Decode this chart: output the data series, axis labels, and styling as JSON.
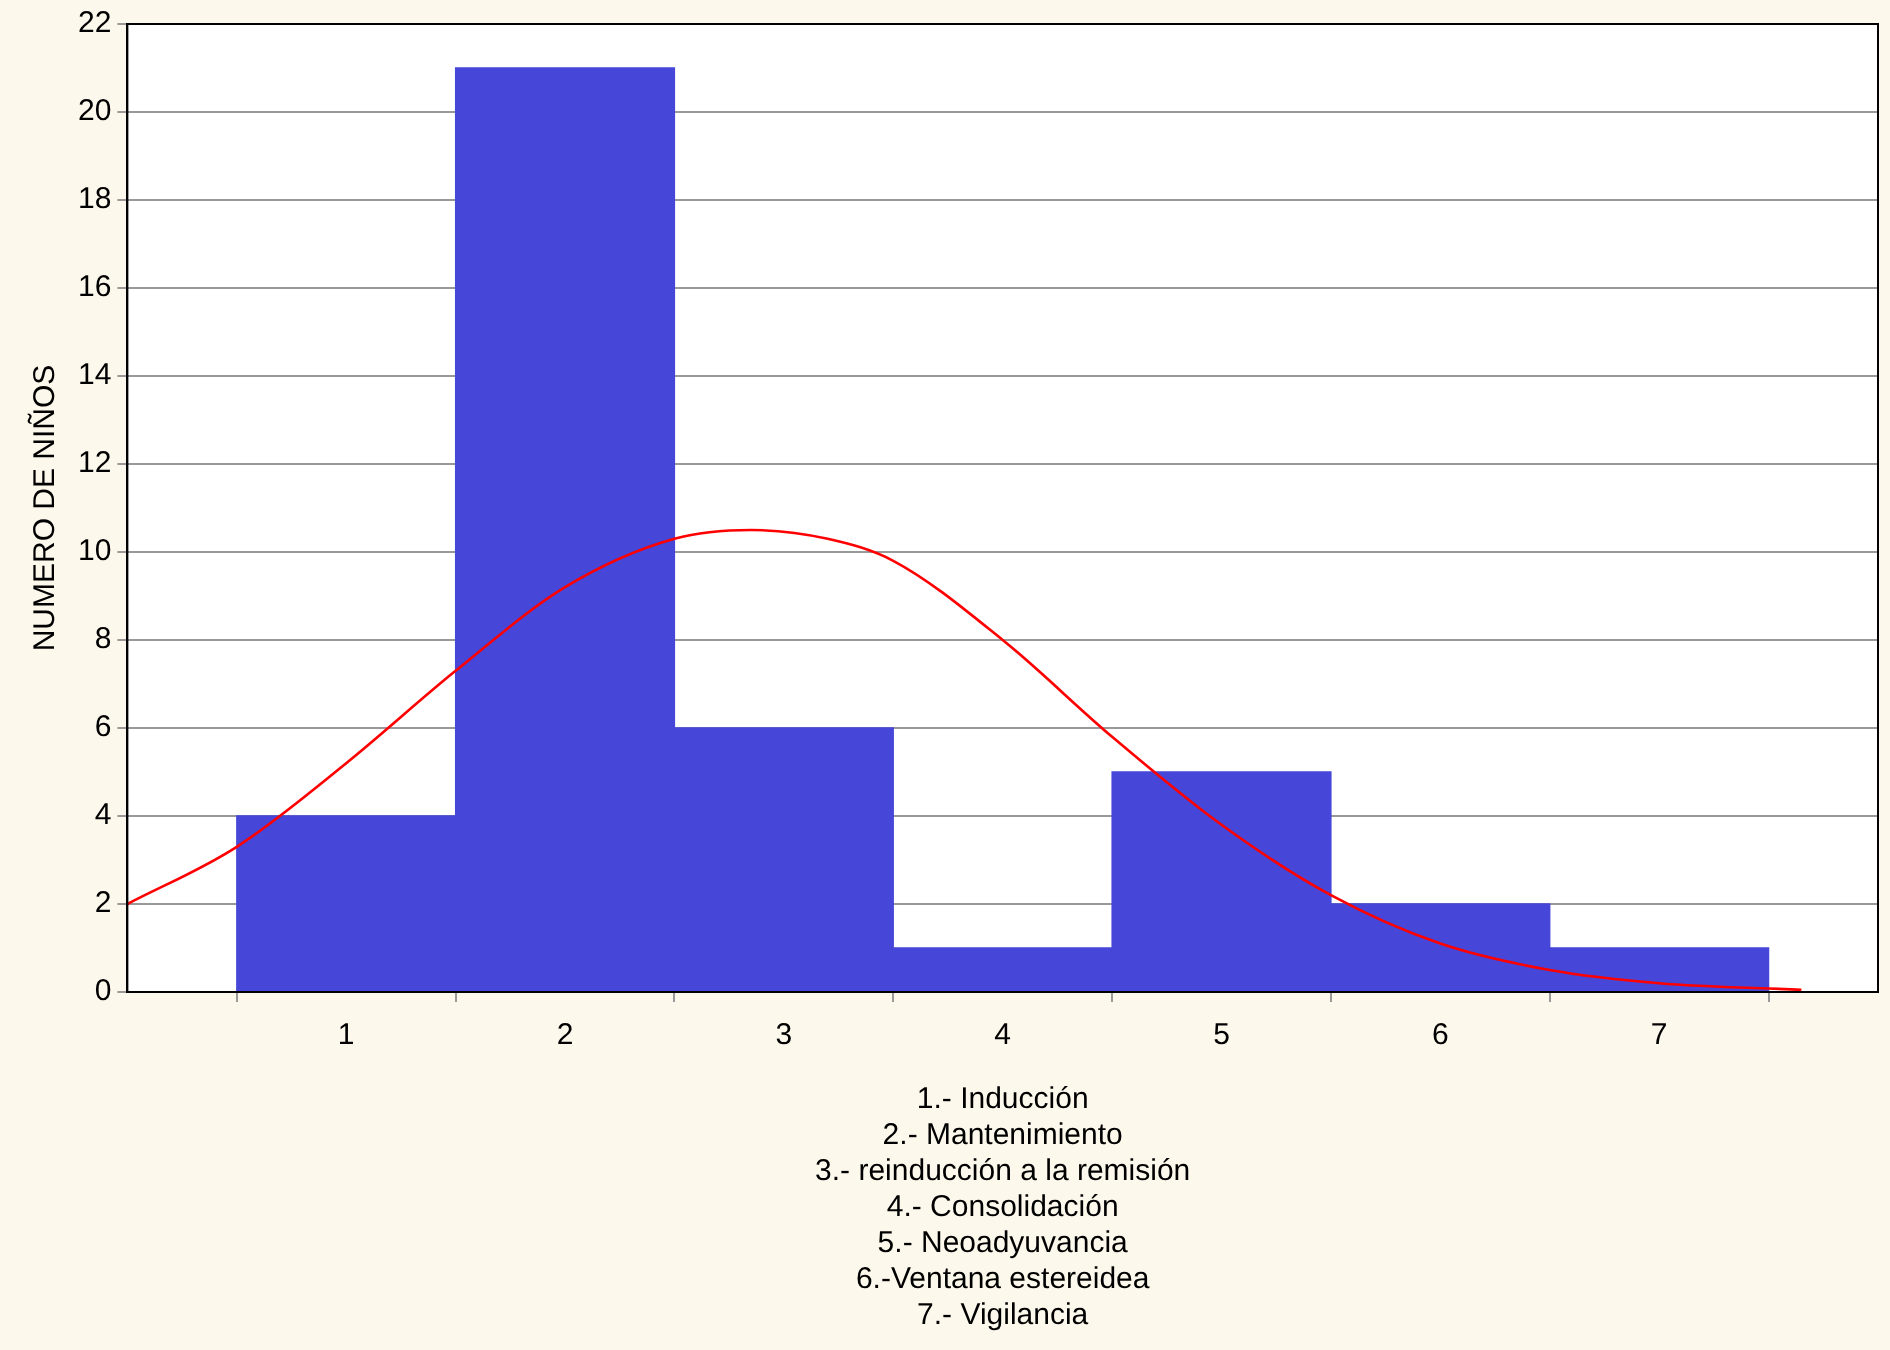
{
  "chart_data": {
    "type": "histogram",
    "bins": [
      0.5,
      1.5,
      2.5,
      3.5,
      4.5,
      5.5,
      6.5,
      7.5
    ],
    "values": [
      4,
      21,
      6,
      1,
      5,
      2,
      1
    ],
    "color": "#4646d8",
    "series": [
      {
        "type": "line",
        "color": "#ff0000",
        "x": [
          0,
          0.5,
          1,
          1.5,
          2,
          2.5,
          2.85,
          3.2,
          3.5,
          4,
          4.5,
          5,
          5.5,
          6,
          6.5,
          7,
          7.65
        ],
        "values": [
          2,
          3.3,
          5.2,
          7.3,
          9.2,
          10.3,
          10.5,
          10.3,
          9.8,
          8,
          5.8,
          3.8,
          2.2,
          1.1,
          0.5,
          0.2,
          0.05
        ]
      }
    ],
    "xlabel": "1.- Inducción\n2.- Mantenimiento\n3.- reinducción a la remisión\n4.- Consolidación\n5.- Neoadyuvancia\n6.-Ventana estereidea\n7.- Vigilancia",
    "ylabel": "NUMERO DE NIÑOS",
    "xlim": [
      0,
      8
    ],
    "xticks": [
      1,
      2,
      3,
      4,
      5,
      6,
      7
    ],
    "ylim": [
      0,
      22
    ],
    "yticks": [
      0,
      2,
      4,
      6,
      8,
      10,
      12,
      14,
      16,
      18,
      20,
      22
    ],
    "grid": "y",
    "marker": "none"
  }
}
